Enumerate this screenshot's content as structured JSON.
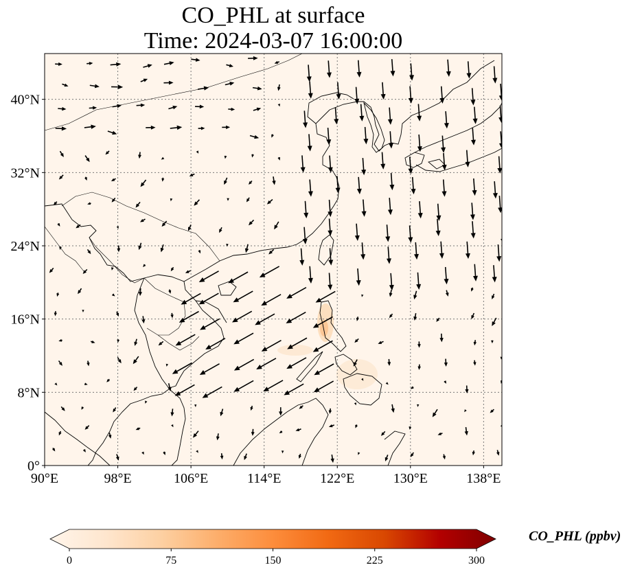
{
  "title": {
    "line1": "CO_PHL at surface",
    "line2": "Time: 2024-03-07 16:00:00"
  },
  "map": {
    "extent": {
      "lon": [
        90,
        140
      ],
      "lat": [
        0,
        45
      ]
    },
    "lon_ticks": [
      {
        "value": 90,
        "label": "90°E"
      },
      {
        "value": 98,
        "label": "98°E"
      },
      {
        "value": 106,
        "label": "106°E"
      },
      {
        "value": 114,
        "label": "114°E"
      },
      {
        "value": 122,
        "label": "122°E"
      },
      {
        "value": 130,
        "label": "130°E"
      },
      {
        "value": 138,
        "label": "138°E"
      }
    ],
    "lat_ticks": [
      {
        "value": 0,
        "label": "0°"
      },
      {
        "value": 8,
        "label": "8°N"
      },
      {
        "value": 16,
        "label": "16°N"
      },
      {
        "value": 24,
        "label": "24°N"
      },
      {
        "value": 32,
        "label": "32°N"
      },
      {
        "value": 40,
        "label": "40°N"
      }
    ],
    "background_color": "#fff5eb",
    "gridlines": "dotted",
    "wind_arrows": "shown"
  },
  "colorbar": {
    "label": "CO_PHL (ppbv)",
    "ticks": [
      {
        "value": 0,
        "label": "0"
      },
      {
        "value": 75,
        "label": "75"
      },
      {
        "value": 150,
        "label": "150"
      },
      {
        "value": 225,
        "label": "225"
      },
      {
        "value": 300,
        "label": "300"
      }
    ],
    "range": [
      0,
      300
    ],
    "extend": "both",
    "colormap": [
      "#fff5eb",
      "#fee6ce",
      "#fdd0a2",
      "#fdae6b",
      "#fd8d3c",
      "#f16913",
      "#d94801",
      "#b30000",
      "#7f0000"
    ]
  }
}
